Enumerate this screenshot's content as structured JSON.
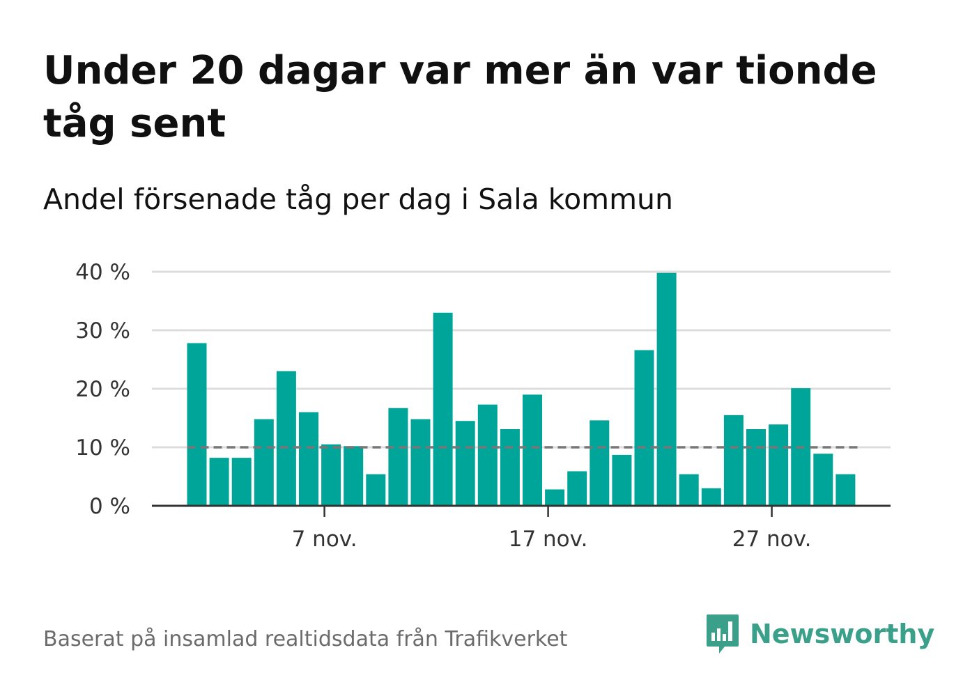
{
  "title": "Under 20 dagar var mer än var tionde tåg sent",
  "subtitle": "Andel försenade tåg per dag i Sala kommun",
  "source": "Baserat på insamlad realtidsdata från Trafikverket",
  "brand": {
    "name": "Newsworthy",
    "icon": "newsworthy-logo-icon",
    "color": "#3aa089"
  },
  "colors": {
    "bar": "#00a59a",
    "grid": "#dddddd",
    "axis": "#333333",
    "reference": "#777777"
  },
  "chart_data": {
    "type": "bar",
    "title": "Under 20 dagar var mer än var tionde tåg sent",
    "subtitle": "Andel försenade tåg per dag i Sala kommun",
    "xlabel": "",
    "ylabel": "",
    "x_start_day": 1,
    "x_end_day": 30,
    "x": [
      "1 nov.",
      "2 nov.",
      "3 nov.",
      "4 nov.",
      "5 nov.",
      "6 nov.",
      "7 nov.",
      "8 nov.",
      "9 nov.",
      "10 nov.",
      "11 nov.",
      "12 nov.",
      "13 nov.",
      "14 nov.",
      "15 nov.",
      "16 nov.",
      "17 nov.",
      "18 nov.",
      "19 nov.",
      "20 nov.",
      "21 nov.",
      "22 nov.",
      "23 nov.",
      "24 nov.",
      "25 nov.",
      "26 nov.",
      "27 nov.",
      "28 nov.",
      "29 nov.",
      "30 nov."
    ],
    "values": [
      27.8,
      8.2,
      8.2,
      14.8,
      23.0,
      16.0,
      10.5,
      10.2,
      5.4,
      16.7,
      14.8,
      33.0,
      14.5,
      17.3,
      13.1,
      19.0,
      2.8,
      5.9,
      14.6,
      8.7,
      26.6,
      39.8,
      5.4,
      3.0,
      15.5,
      13.1,
      13.9,
      20.1,
      8.9,
      5.4
    ],
    "reference_line": {
      "value": 10,
      "style": "dashed"
    },
    "x_ticks": [
      {
        "day": 7,
        "label": "7 nov."
      },
      {
        "day": 17,
        "label": "17 nov."
      },
      {
        "day": 27,
        "label": "27 nov."
      }
    ],
    "y_ticks": [
      {
        "value": 0,
        "label": "0 %"
      },
      {
        "value": 10,
        "label": "10 %"
      },
      {
        "value": 20,
        "label": "20 %"
      },
      {
        "value": 30,
        "label": "30 %"
      },
      {
        "value": 40,
        "label": "40 %"
      }
    ],
    "ylim": [
      0,
      40
    ],
    "grid": true,
    "legend": "none"
  }
}
